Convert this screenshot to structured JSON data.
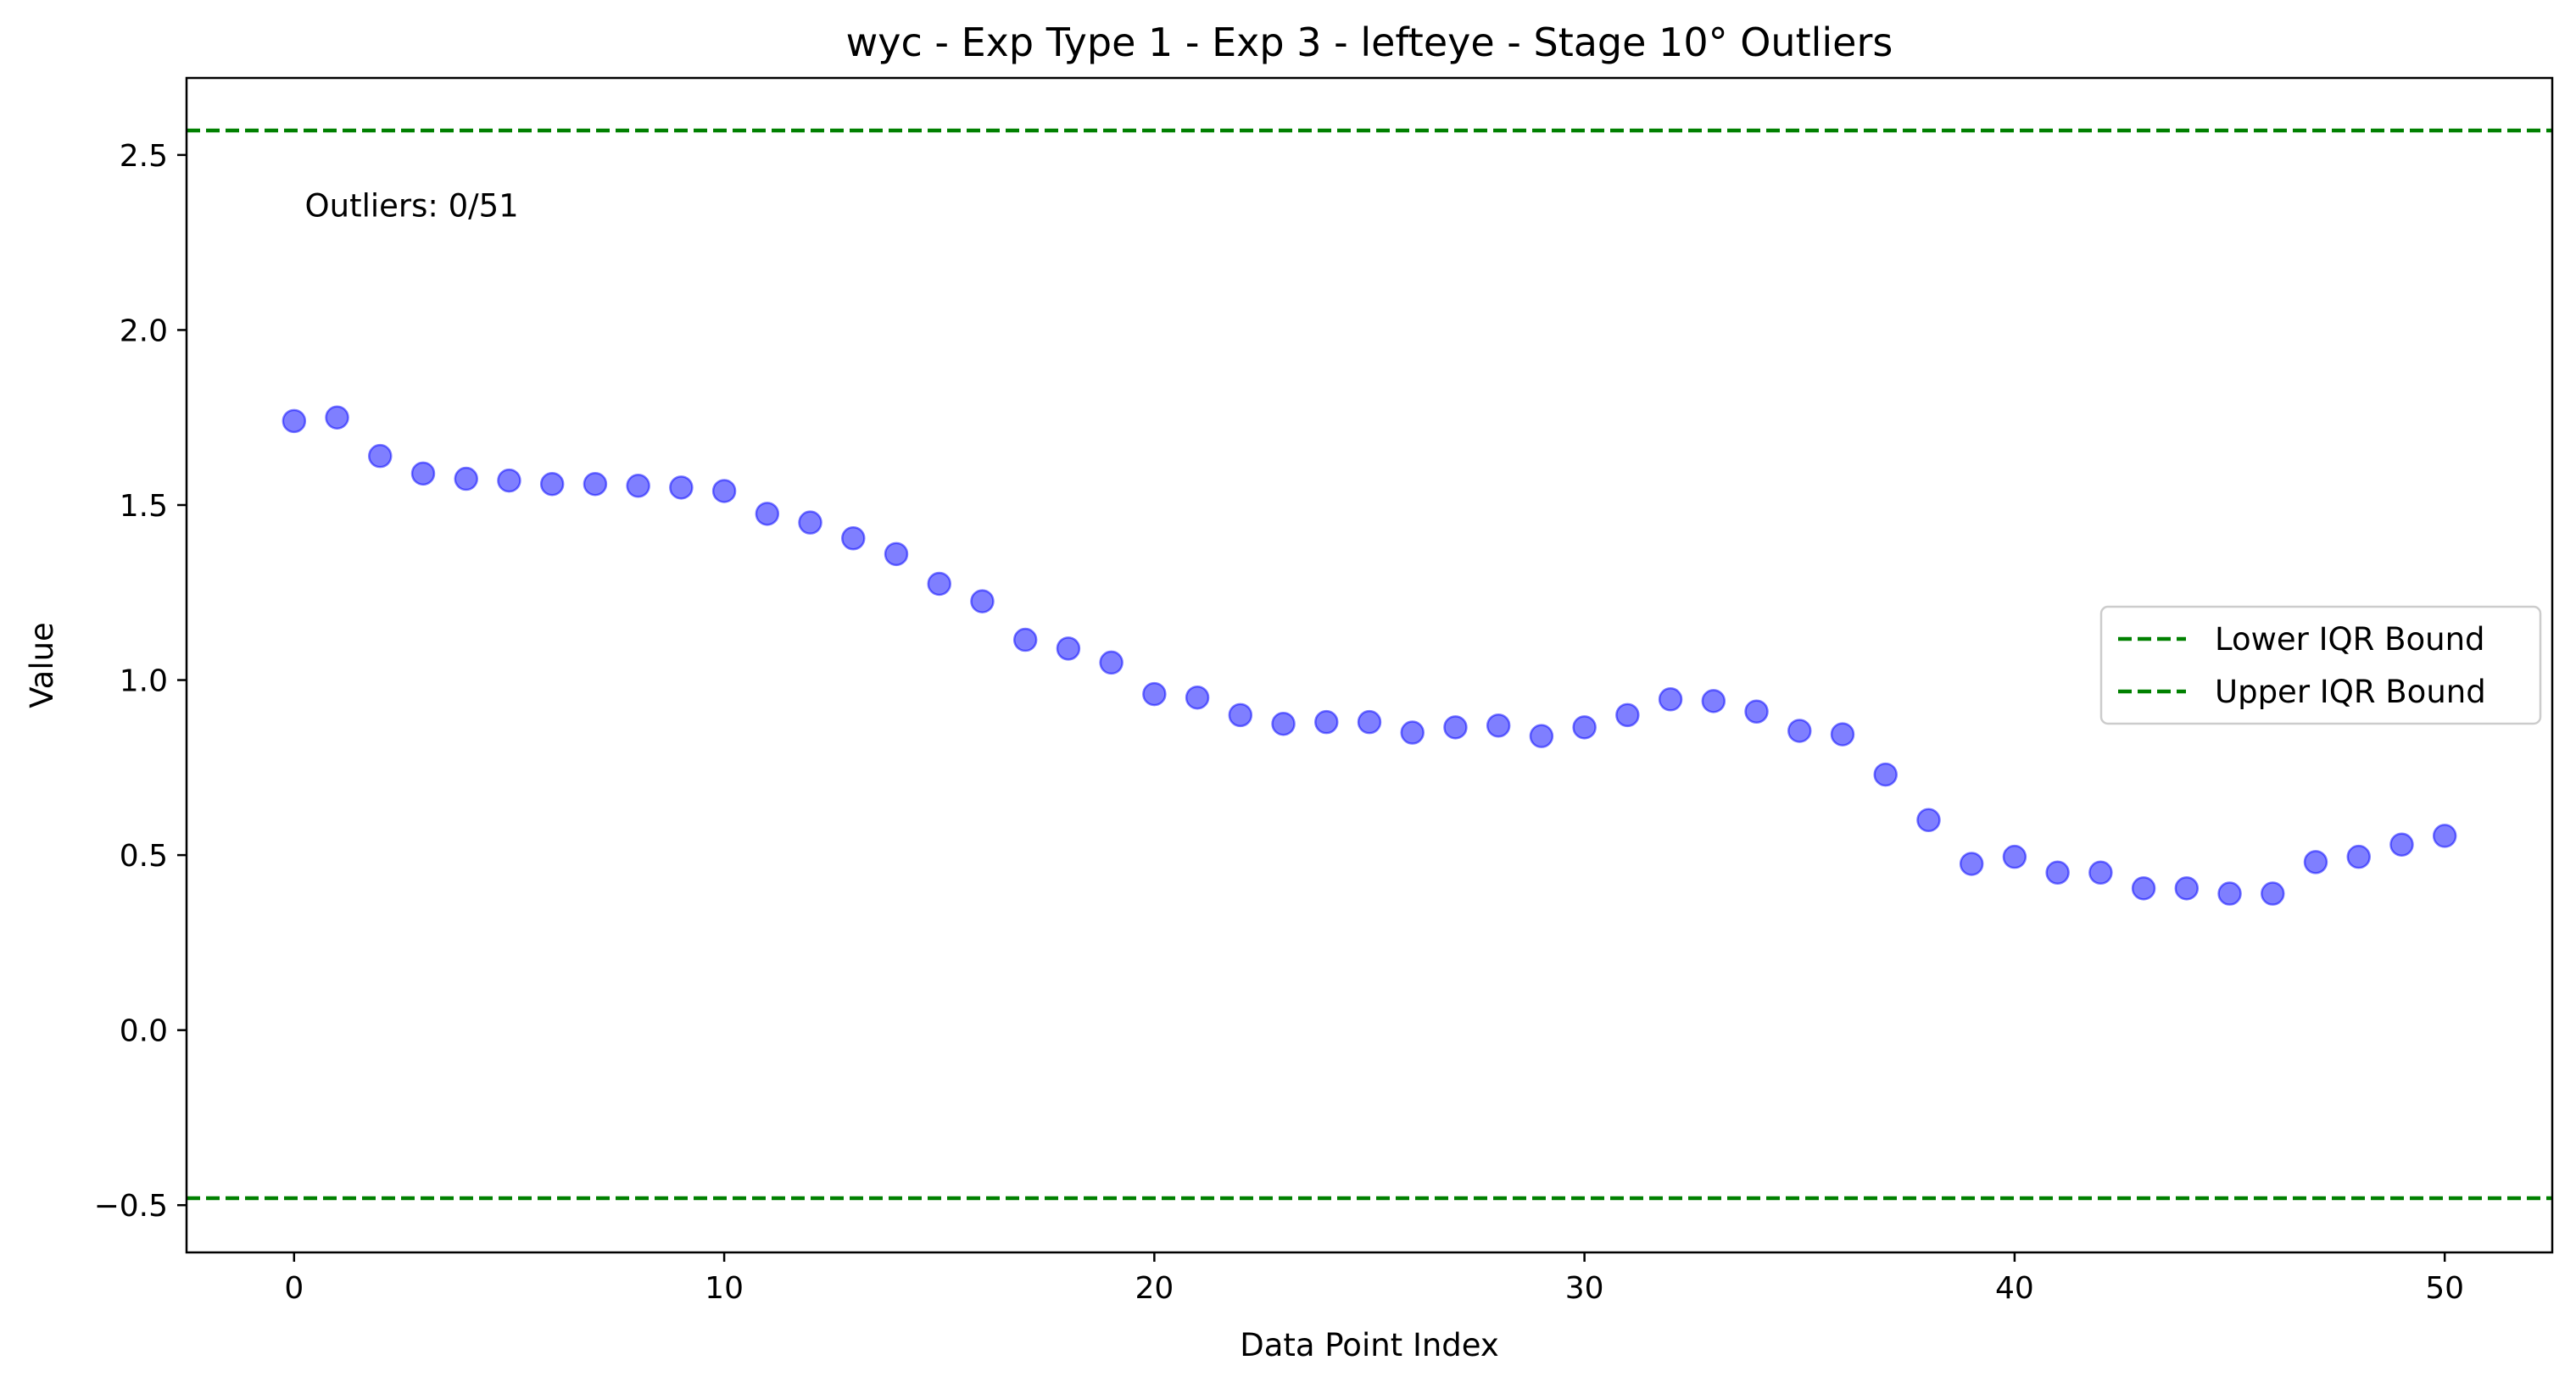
{
  "chart_data": {
    "type": "scatter",
    "title": "wyc - Exp Type 1 - Exp 3 - lefteye - Stage 10° Outliers",
    "xlabel": "Data Point Index",
    "ylabel": "Value",
    "xlim": [
      -2.5,
      52.5
    ],
    "ylim": [
      -0.635,
      2.72
    ],
    "x_ticks": [
      0,
      10,
      20,
      30,
      40,
      50
    ],
    "y_ticks": [
      -0.5,
      0.0,
      0.5,
      1.0,
      1.5,
      2.0,
      2.5
    ],
    "y_tick_labels": [
      "−0.5",
      "0.0",
      "0.5",
      "1.0",
      "1.5",
      "2.0",
      "2.5"
    ],
    "grid": false,
    "legend_placement": "center-right",
    "annotation": "Outliers: 0/51",
    "colors": {
      "points": "#0000ff",
      "bounds": "#008000"
    },
    "series": [
      {
        "values": [
          1.74,
          1.75,
          1.64,
          1.59,
          1.575,
          1.57,
          1.56,
          1.56,
          1.555,
          1.55,
          1.54,
          1.475,
          1.45,
          1.405,
          1.36,
          1.275,
          1.225,
          1.115,
          1.09,
          1.05,
          0.96,
          0.95,
          0.9,
          0.875,
          0.88,
          0.88,
          0.85,
          0.865,
          0.87,
          0.84,
          0.865,
          0.9,
          0.945,
          0.94,
          0.91,
          0.855,
          0.845,
          0.73,
          0.6,
          0.475,
          0.495,
          0.45,
          0.45,
          0.405,
          0.405,
          0.39,
          0.39,
          0.48,
          0.495,
          0.53,
          0.555
        ]
      }
    ],
    "bounds": [
      {
        "name": "Lower IQR Bound",
        "value": -0.48
      },
      {
        "name": "Upper IQR Bound",
        "value": 2.57
      }
    ]
  }
}
